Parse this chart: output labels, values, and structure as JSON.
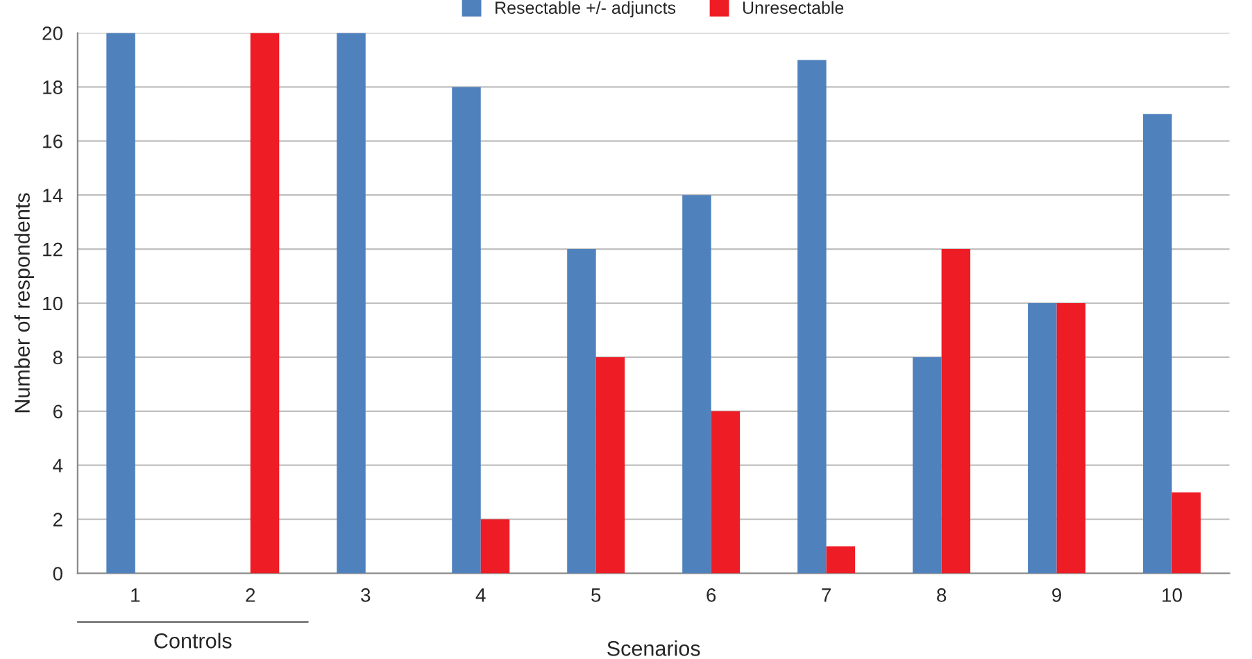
{
  "chart_data": {
    "type": "bar",
    "xlabel": "Scenarios",
    "ylabel": "Number of respondents",
    "categories": [
      "1",
      "2",
      "3",
      "4",
      "5",
      "6",
      "7",
      "8",
      "9",
      "10"
    ],
    "series": [
      {
        "name": "Resectable +/- adjuncts",
        "color": "#4f81bd",
        "values": [
          20,
          0,
          20,
          18,
          12,
          14,
          19,
          8,
          10,
          17
        ]
      },
      {
        "name": "Unresectable",
        "color": "#ee1c25",
        "values": [
          0,
          20,
          0,
          2,
          8,
          6,
          1,
          12,
          10,
          3
        ]
      }
    ],
    "ylim": [
      0,
      20
    ],
    "yticks": [
      0,
      2,
      4,
      6,
      8,
      10,
      12,
      14,
      16,
      18,
      20
    ],
    "grid": "y",
    "legend": "top",
    "annotations": [
      "Controls"
    ]
  }
}
